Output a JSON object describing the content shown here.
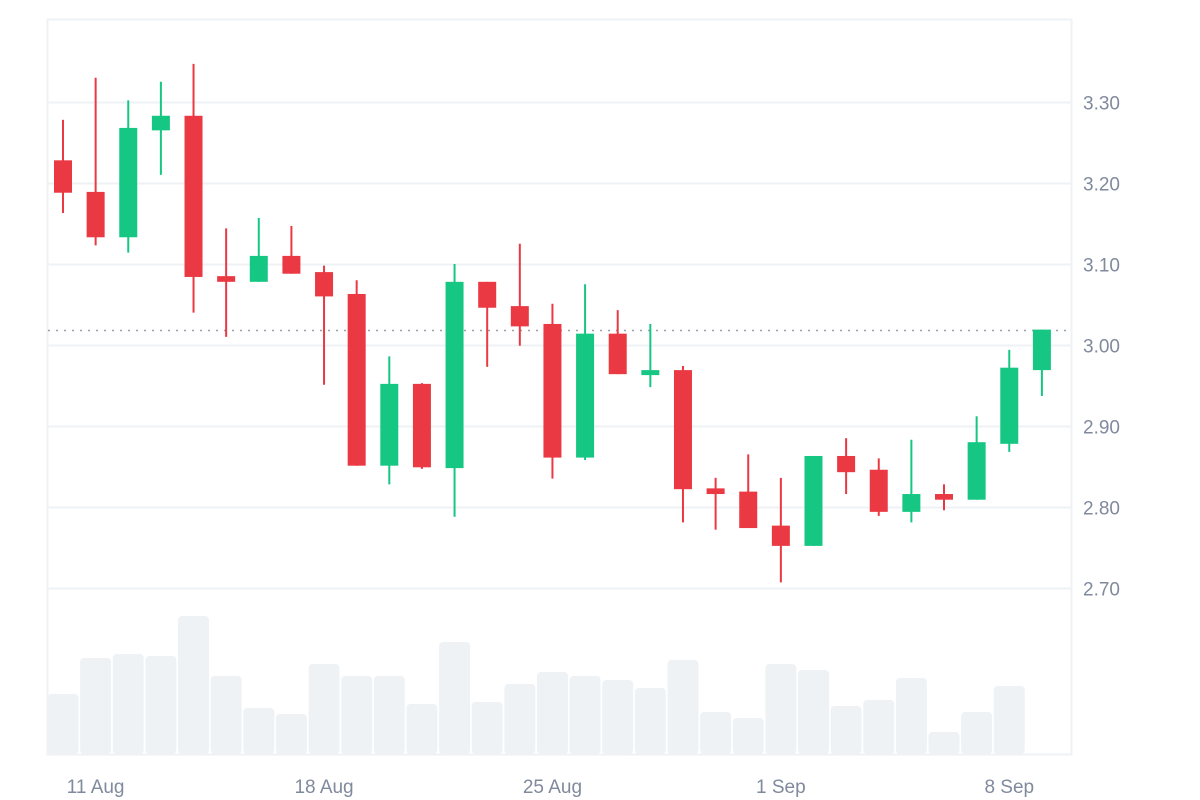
{
  "chart_data": {
    "type": "candlestick",
    "title": "",
    "xlabel": "",
    "ylabel": "",
    "ylim": [
      2.65,
      3.4
    ],
    "y_ticks": [
      3.3,
      3.2,
      3.1,
      3.0,
      2.9,
      2.8,
      2.7
    ],
    "y_tick_labels": [
      "3.30",
      "3.20",
      "3.10",
      "3.00",
      "2.90",
      "2.80",
      "2.70"
    ],
    "x_tick_labels": [
      {
        "label": "11 Aug",
        "index": 1
      },
      {
        "label": "18 Aug",
        "index": 8
      },
      {
        "label": "25 Aug",
        "index": 15
      },
      {
        "label": "1 Sep",
        "index": 22
      },
      {
        "label": "8 Sep",
        "index": 29
      }
    ],
    "grid": true,
    "legend": null,
    "last_price_line": 3.019,
    "colors": {
      "up": "#16c784",
      "down": "#ea3943",
      "volume": "#eff2f5",
      "grid": "#eff2f5",
      "axis_text": "#808a9d",
      "last_price_line": "#9aa0aa"
    },
    "dates": [
      "10 Aug",
      "11 Aug",
      "12 Aug",
      "13 Aug",
      "14 Aug",
      "15 Aug",
      "16 Aug",
      "17 Aug",
      "18 Aug",
      "19 Aug",
      "20 Aug",
      "21 Aug",
      "22 Aug",
      "23 Aug",
      "24 Aug",
      "25 Aug",
      "26 Aug",
      "27 Aug",
      "28 Aug",
      "29 Aug",
      "30 Aug",
      "31 Aug",
      "1 Sep",
      "2 Sep",
      "3 Sep",
      "4 Sep",
      "5 Sep",
      "6 Sep",
      "7 Sep",
      "8 Sep",
      "9 Sep"
    ],
    "open": [
      3.228,
      3.189,
      3.133,
      3.265,
      3.283,
      3.085,
      3.078,
      3.11,
      3.09,
      3.063,
      2.851,
      2.952,
      2.848,
      3.078,
      3.048,
      3.026,
      2.861,
      3.014,
      2.964,
      2.969,
      2.823,
      2.819,
      2.777,
      2.752,
      2.863,
      2.846,
      2.794,
      2.816,
      2.809,
      2.878,
      2.969
    ],
    "high": [
      3.278,
      3.33,
      3.302,
      3.325,
      3.347,
      3.144,
      3.157,
      3.147,
      3.098,
      3.08,
      2.986,
      2.953,
      3.1,
      3.078,
      3.125,
      3.051,
      3.075,
      3.043,
      3.026,
      2.974,
      2.836,
      2.865,
      2.836,
      2.863,
      2.885,
      2.86,
      2.883,
      2.828,
      2.912,
      2.994,
      3.019
    ],
    "low": [
      3.163,
      3.123,
      3.114,
      3.21,
      3.04,
      3.01,
      3.078,
      3.088,
      2.951,
      2.851,
      2.828,
      2.847,
      2.788,
      2.973,
      2.999,
      2.835,
      2.858,
      2.964,
      2.948,
      2.781,
      2.772,
      2.774,
      2.707,
      2.752,
      2.816,
      2.789,
      2.781,
      2.796,
      2.809,
      2.868,
      2.937
    ],
    "close": [
      3.188,
      3.133,
      3.268,
      3.283,
      3.084,
      3.078,
      3.11,
      3.088,
      3.06,
      2.851,
      2.952,
      2.849,
      3.078,
      3.046,
      3.023,
      2.861,
      3.014,
      2.964,
      2.969,
      2.822,
      2.816,
      2.774,
      2.752,
      2.863,
      2.843,
      2.794,
      2.816,
      2.809,
      2.88,
      2.972,
      3.019
    ],
    "volume_relative": [
      60,
      96,
      100,
      98,
      138,
      78,
      46,
      40,
      90,
      78,
      78,
      50,
      112,
      52,
      70,
      82,
      78,
      74,
      66,
      94,
      42,
      36,
      90,
      84,
      48,
      54,
      76,
      22,
      42,
      68,
      0
    ]
  }
}
